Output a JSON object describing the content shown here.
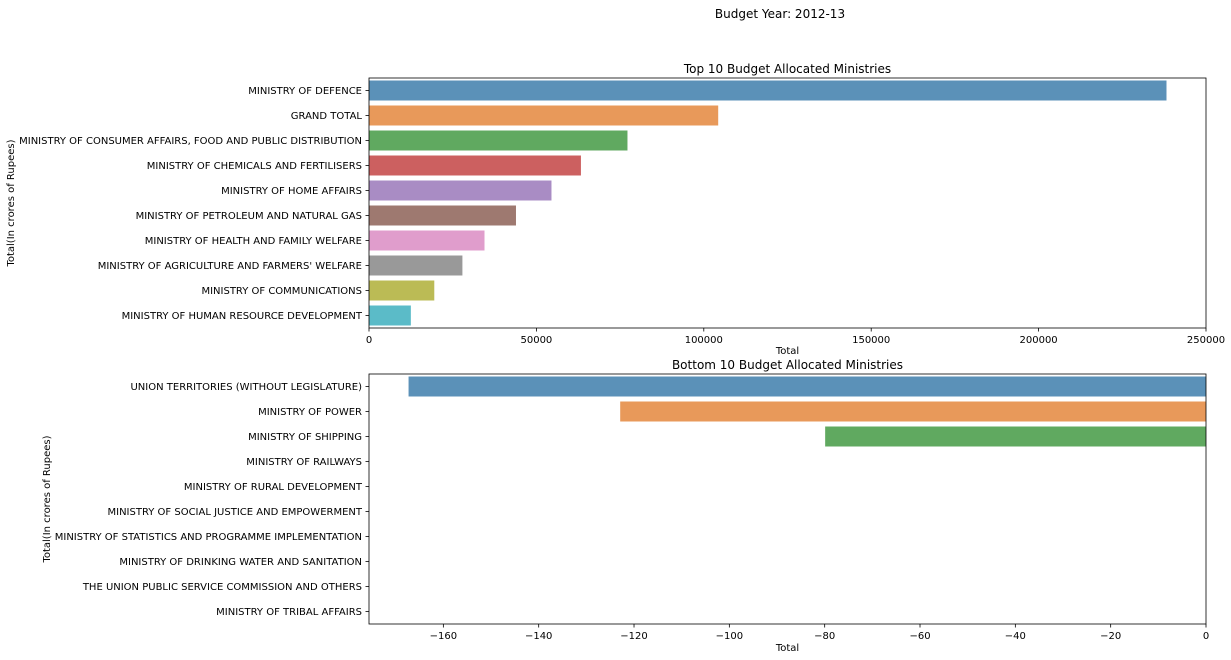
{
  "figure_title": "Budget Year: 2012-13",
  "chart_data": [
    {
      "type": "bar",
      "orientation": "horizontal",
      "title": "Top 10 Budget Allocated Ministries",
      "xlabel": "Total",
      "ylabel": "Total(In crores of Rupees)",
      "xlim": [
        0,
        250000
      ],
      "xticks": [
        0,
        50000,
        100000,
        150000,
        200000,
        250000
      ],
      "xtick_labels": [
        "0",
        "50000",
        "100000",
        "150000",
        "200000",
        "250000"
      ],
      "categories": [
        "MINISTRY OF DEFENCE",
        "GRAND TOTAL",
        "MINISTRY OF CONSUMER AFFAIRS, FOOD AND PUBLIC DISTRIBUTION",
        "MINISTRY OF CHEMICALS AND FERTILISERS",
        "MINISTRY OF HOME AFFAIRS",
        "MINISTRY OF PETROLEUM AND NATURAL GAS",
        "MINISTRY OF HEALTH AND FAMILY WELFARE",
        "MINISTRY OF AGRICULTURE AND FARMERS' WELFARE",
        "MINISTRY OF COMMUNICATIONS",
        "MINISTRY OF HUMAN RESOURCE DEVELOPMENT"
      ],
      "values": [
        238200,
        104300,
        77200,
        63300,
        54500,
        43900,
        34500,
        27900,
        19500,
        12500
      ],
      "colors": [
        "#5b91b8",
        "#e8995a",
        "#60a960",
        "#cc6060",
        "#a98cc4",
        "#9e7970",
        "#e09dcc",
        "#999999",
        "#bbbb55",
        "#5bbbc8"
      ],
      "grid": false,
      "legend": "none"
    },
    {
      "type": "bar",
      "orientation": "horizontal",
      "title": "Bottom 10 Budget Allocated Ministries",
      "xlabel": "Total",
      "ylabel": "Total(In crores of Rupees)",
      "xlim": [
        -175.6,
        0
      ],
      "xticks": [
        -160,
        -140,
        -120,
        -100,
        -80,
        -60,
        -40,
        -20,
        0
      ],
      "xtick_labels": [
        "−160",
        "−140",
        "−120",
        "−100",
        "−80",
        "−60",
        "−40",
        "−20",
        "0"
      ],
      "categories": [
        "UNION TERRITORIES (WITHOUT LEGISLATURE)",
        "MINISTRY OF POWER",
        "MINISTRY OF SHIPPING",
        "MINISTRY OF RAILWAYS",
        "MINISTRY OF RURAL DEVELOPMENT",
        "MINISTRY OF SOCIAL JUSTICE AND EMPOWERMENT",
        "MINISTRY OF STATISTICS AND PROGRAMME IMPLEMENTATION",
        "MINISTRY OF DRINKING WATER AND SANITATION",
        "THE UNION PUBLIC SERVICE COMMISSION AND OTHERS",
        "MINISTRY OF TRIBAL AFFAIRS"
      ],
      "values": [
        -167.3,
        -122.9,
        -79.9,
        0,
        0,
        0,
        0,
        0,
        0,
        0
      ],
      "colors": [
        "#5b91b8",
        "#e8995a",
        "#60a960",
        "#cc6060",
        "#a98cc4",
        "#9e7970",
        "#e09dcc",
        "#999999",
        "#bbbb55",
        "#5bbbc8"
      ],
      "grid": false,
      "legend": "none"
    }
  ]
}
